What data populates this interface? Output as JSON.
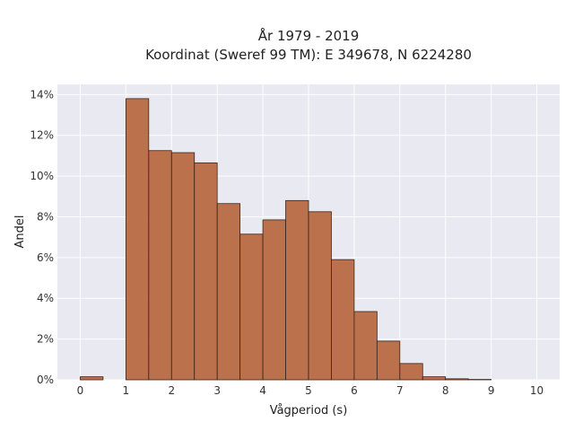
{
  "chart_data": {
    "type": "bar",
    "title_line1": "År 1979 - 2019",
    "title_line2": "Koordinat (Sweref 99 TM): E 349678, N 6224280",
    "xlabel": "Vågperiod (s)",
    "ylabel": "Andel",
    "xlim": [
      -0.5,
      10.5
    ],
    "ylim": [
      0,
      14.5
    ],
    "x_ticks": [
      0,
      1,
      2,
      3,
      4,
      5,
      6,
      7,
      8,
      9,
      10
    ],
    "y_ticks": [
      0,
      2,
      4,
      6,
      8,
      10,
      12,
      14
    ],
    "y_tick_labels": [
      "0%",
      "2%",
      "4%",
      "6%",
      "8%",
      "10%",
      "12%",
      "14%"
    ],
    "bin_width": 0.5,
    "bins": [
      {
        "x0": 0.0,
        "value": 0.15
      },
      {
        "x0": 0.5,
        "value": 0.0
      },
      {
        "x0": 1.0,
        "value": 13.8
      },
      {
        "x0": 1.5,
        "value": 11.25
      },
      {
        "x0": 2.0,
        "value": 11.15
      },
      {
        "x0": 2.5,
        "value": 10.65
      },
      {
        "x0": 3.0,
        "value": 8.65
      },
      {
        "x0": 3.5,
        "value": 7.15
      },
      {
        "x0": 4.0,
        "value": 7.85
      },
      {
        "x0": 4.5,
        "value": 8.8
      },
      {
        "x0": 5.0,
        "value": 8.25
      },
      {
        "x0": 5.5,
        "value": 5.9
      },
      {
        "x0": 6.0,
        "value": 3.35
      },
      {
        "x0": 6.5,
        "value": 1.9
      },
      {
        "x0": 7.0,
        "value": 0.8
      },
      {
        "x0": 7.5,
        "value": 0.15
      },
      {
        "x0": 8.0,
        "value": 0.05
      },
      {
        "x0": 8.5,
        "value": 0.02
      }
    ],
    "colors": {
      "bar": "#b5643a",
      "edge": "#3a2418",
      "plot_background": "#e9e9f1",
      "grid": "#ffffff"
    },
    "grid": true
  }
}
